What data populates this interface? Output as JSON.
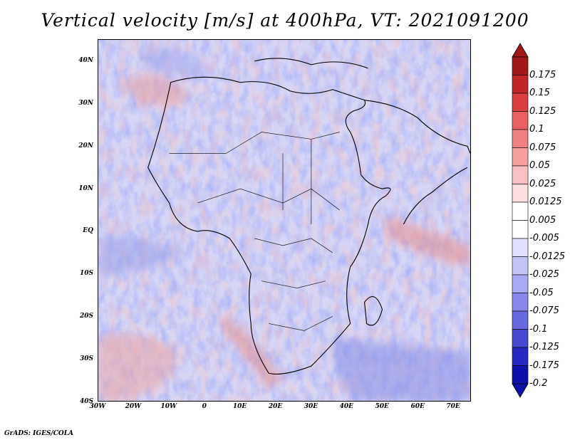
{
  "title": "Vertical velocity [m/s] at 400hPa, VT: 2021091200",
  "credit": "GrADS: IGES/COLA",
  "map": {
    "projection": "latlon",
    "lon_range": [
      -30,
      75
    ],
    "lat_range": [
      -40,
      45
    ],
    "lat_ticks": [
      {
        "value": 40,
        "label": "40N"
      },
      {
        "value": 30,
        "label": "30N"
      },
      {
        "value": 20,
        "label": "20N"
      },
      {
        "value": 10,
        "label": "10N"
      },
      {
        "value": 0,
        "label": "EQ"
      },
      {
        "value": -10,
        "label": "10S"
      },
      {
        "value": -20,
        "label": "20S"
      },
      {
        "value": -30,
        "label": "30S"
      },
      {
        "value": -40,
        "label": "40S"
      }
    ],
    "lon_ticks": [
      {
        "value": -30,
        "label": "30W"
      },
      {
        "value": -20,
        "label": "20W"
      },
      {
        "value": -10,
        "label": "10W"
      },
      {
        "value": 0,
        "label": "0"
      },
      {
        "value": 10,
        "label": "10E"
      },
      {
        "value": 20,
        "label": "20E"
      },
      {
        "value": 30,
        "label": "30E"
      },
      {
        "value": 40,
        "label": "40E"
      },
      {
        "value": 50,
        "label": "50E"
      },
      {
        "value": 60,
        "label": "60E"
      },
      {
        "value": 70,
        "label": "70E"
      }
    ],
    "field_colors": {
      "positive": "#e8b0b0",
      "negative": "#9aa0ec",
      "neutral": "#dcdcf6",
      "coast": "#000000"
    }
  },
  "colorbar": {
    "labels": [
      "0.175",
      "0.15",
      "0.125",
      "0.1",
      "0.075",
      "0.05",
      "0.025",
      "0.0125",
      "0.005",
      "-0.005",
      "-0.0125",
      "-0.025",
      "-0.05",
      "-0.075",
      "-0.1",
      "-0.125",
      "-0.175",
      "-0.2"
    ],
    "colors": [
      "#a01818",
      "#c02828",
      "#d84040",
      "#e86060",
      "#f08080",
      "#f4a0a0",
      "#f8c0c0",
      "#fce0e0",
      "#ffffff",
      "#ffffff",
      "#e0e0fc",
      "#c4c4f8",
      "#a8a8f4",
      "#8888ec",
      "#6868e0",
      "#4848d0",
      "#2828c0",
      "#1010a8"
    ],
    "top_arrow_color": "#a01818",
    "bottom_arrow_color": "#1010a8"
  }
}
